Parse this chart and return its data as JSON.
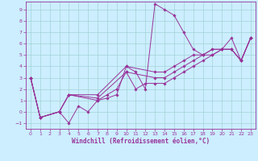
{
  "xlabel": "Windchill (Refroidissement éolien,°C)",
  "bg_color": "#cceeff",
  "line_color": "#993399",
  "grid_color": "#99cccc",
  "xlim": [
    -0.5,
    23.5
  ],
  "ylim": [
    -1.5,
    9.7
  ],
  "xticks": [
    0,
    1,
    2,
    3,
    4,
    5,
    6,
    7,
    8,
    9,
    10,
    11,
    12,
    13,
    14,
    15,
    16,
    17,
    18,
    19,
    20,
    21,
    22,
    23
  ],
  "yticks": [
    -1,
    0,
    1,
    2,
    3,
    4,
    5,
    6,
    7,
    8,
    9
  ],
  "series": [
    [
      [
        0,
        3.0
      ],
      [
        1,
        -0.5
      ],
      [
        3,
        0.0
      ],
      [
        4,
        -1.0
      ],
      [
        5,
        0.5
      ],
      [
        6,
        0.0
      ],
      [
        7,
        1.0
      ],
      [
        8,
        1.2
      ],
      [
        9,
        1.5
      ],
      [
        10,
        4.0
      ],
      [
        11,
        3.5
      ],
      [
        12,
        2.0
      ],
      [
        13,
        9.5
      ],
      [
        14,
        9.0
      ],
      [
        15,
        8.5
      ],
      [
        16,
        7.0
      ],
      [
        17,
        5.5
      ],
      [
        18,
        5.0
      ],
      [
        19,
        5.0
      ],
      [
        20,
        5.5
      ],
      [
        21,
        6.5
      ],
      [
        22,
        4.5
      ],
      [
        23,
        6.5
      ]
    ],
    [
      [
        0,
        3.0
      ],
      [
        1,
        -0.5
      ],
      [
        3,
        0.0
      ],
      [
        4,
        1.5
      ],
      [
        7,
        1.0
      ],
      [
        8,
        1.5
      ],
      [
        9,
        2.0
      ],
      [
        10,
        3.5
      ],
      [
        11,
        2.0
      ],
      [
        12,
        2.5
      ],
      [
        13,
        2.5
      ],
      [
        14,
        2.5
      ],
      [
        15,
        3.0
      ],
      [
        16,
        3.5
      ],
      [
        17,
        4.0
      ],
      [
        18,
        4.5
      ],
      [
        19,
        5.0
      ],
      [
        20,
        5.5
      ],
      [
        21,
        5.5
      ],
      [
        22,
        4.5
      ],
      [
        23,
        6.5
      ]
    ],
    [
      [
        0,
        3.0
      ],
      [
        1,
        -0.5
      ],
      [
        3,
        0.0
      ],
      [
        4,
        1.5
      ],
      [
        7,
        1.2
      ],
      [
        10,
        3.5
      ],
      [
        13,
        3.0
      ],
      [
        14,
        3.0
      ],
      [
        15,
        3.5
      ],
      [
        16,
        4.0
      ],
      [
        17,
        4.5
      ],
      [
        18,
        5.0
      ],
      [
        19,
        5.5
      ],
      [
        20,
        5.5
      ],
      [
        21,
        5.5
      ],
      [
        22,
        4.5
      ],
      [
        23,
        6.5
      ]
    ],
    [
      [
        0,
        3.0
      ],
      [
        1,
        -0.5
      ],
      [
        3,
        0.0
      ],
      [
        4,
        1.5
      ],
      [
        7,
        1.5
      ],
      [
        10,
        4.0
      ],
      [
        13,
        3.5
      ],
      [
        14,
        3.5
      ],
      [
        15,
        4.0
      ],
      [
        16,
        4.5
      ],
      [
        17,
        5.0
      ],
      [
        18,
        5.0
      ],
      [
        19,
        5.5
      ],
      [
        20,
        5.5
      ],
      [
        21,
        5.5
      ],
      [
        22,
        4.5
      ],
      [
        23,
        6.5
      ]
    ]
  ],
  "marker": "D",
  "markersize": 1.8,
  "linewidth": 0.7,
  "tick_fontsize": 4.5,
  "xlabel_fontsize": 5.5,
  "tick_color": "#993399",
  "spine_color": "#993399"
}
